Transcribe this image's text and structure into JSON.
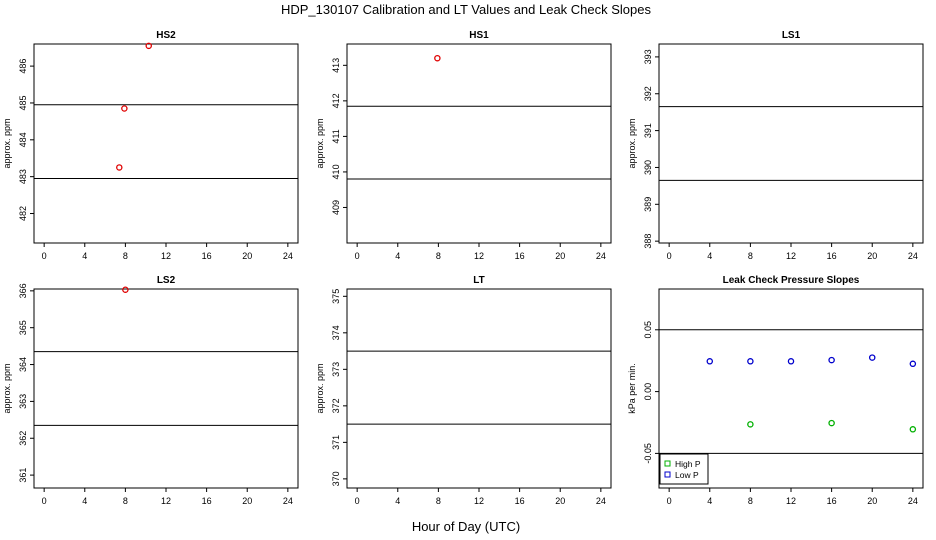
{
  "figure": {
    "title": "HDP_130107  Calibration and LT Values and Leak Check Slopes",
    "xlabel": "Hour of Day (UTC)"
  },
  "chart_data": [
    {
      "type": "scatter",
      "title": "HS2",
      "ylabel": "approx. ppm",
      "xlim": [
        -1,
        25
      ],
      "ylim": [
        481.2,
        486.6
      ],
      "xticks": [
        0,
        4,
        8,
        12,
        16,
        20,
        24
      ],
      "yticks": [
        482,
        483,
        484,
        485,
        486
      ],
      "hlines": [
        484.95,
        482.95
      ],
      "series": [
        {
          "marker": "circle",
          "color": "#e00000",
          "points": [
            {
              "x": 7.4,
              "y": 483.25
            },
            {
              "x": 7.9,
              "y": 484.85
            },
            {
              "x": 10.3,
              "y": 486.55
            }
          ]
        }
      ]
    },
    {
      "type": "scatter",
      "title": "HS1",
      "ylabel": "approx. ppm",
      "xlim": [
        -1,
        25
      ],
      "ylim": [
        408.0,
        413.6
      ],
      "xticks": [
        0,
        4,
        8,
        12,
        16,
        20,
        24
      ],
      "yticks": [
        409,
        410,
        411,
        412,
        413
      ],
      "hlines": [
        411.85,
        409.8
      ],
      "series": [
        {
          "marker": "circle",
          "color": "#e00000",
          "points": [
            {
              "x": 7.9,
              "y": 413.2
            }
          ]
        }
      ]
    },
    {
      "type": "scatter",
      "title": "LS1",
      "ylabel": "approx. ppm",
      "xlim": [
        -1,
        25
      ],
      "ylim": [
        387.95,
        393.35
      ],
      "xticks": [
        0,
        4,
        8,
        12,
        16,
        20,
        24
      ],
      "yticks": [
        388,
        389,
        390,
        391,
        392,
        393
      ],
      "hlines": [
        391.65,
        389.65
      ],
      "series": []
    },
    {
      "type": "scatter",
      "title": "LS2",
      "ylabel": "approx. ppm",
      "xlim": [
        -1,
        25
      ],
      "ylim": [
        360.65,
        366.05
      ],
      "xticks": [
        0,
        4,
        8,
        12,
        16,
        20,
        24
      ],
      "yticks": [
        361,
        362,
        363,
        364,
        365,
        366
      ],
      "hlines": [
        364.35,
        362.35
      ],
      "series": [
        {
          "marker": "circle",
          "color": "#e00000",
          "points": [
            {
              "x": 8.0,
              "y": 366.03
            }
          ]
        }
      ]
    },
    {
      "type": "scatter",
      "title": "LT",
      "ylabel": "approx. ppm",
      "xlim": [
        -1,
        25
      ],
      "ylim": [
        369.75,
        375.2
      ],
      "xticks": [
        0,
        4,
        8,
        12,
        16,
        20,
        24
      ],
      "yticks": [
        370,
        371,
        372,
        373,
        374,
        375
      ],
      "hlines": [
        373.5,
        371.5
      ],
      "series": []
    },
    {
      "type": "scatter",
      "title": "Leak Check Pressure Slopes",
      "ylabel": "kPa per min.",
      "xlim": [
        -1,
        25
      ],
      "ylim": [
        -0.078,
        0.083
      ],
      "xticks": [
        0,
        4,
        8,
        12,
        16,
        20,
        24
      ],
      "yticks": [
        -0.05,
        0.0,
        0.05
      ],
      "ytick_labels": [
        "-0.05",
        "0.00",
        "0.05"
      ],
      "hlines": [
        0.05,
        -0.05
      ],
      "legend": {
        "position": "bottom-left",
        "entries": [
          {
            "label": "High P",
            "color": "#00b000"
          },
          {
            "label": "Low P",
            "color": "#0000cc"
          }
        ]
      },
      "series": [
        {
          "name": "High P",
          "marker": "circle",
          "color": "#00b000",
          "points": [
            {
              "x": 8,
              "y": -0.0265
            },
            {
              "x": 16,
              "y": -0.0255
            },
            {
              "x": 24,
              "y": -0.0305
            }
          ]
        },
        {
          "name": "Low P",
          "marker": "circle",
          "color": "#0000cc",
          "points": [
            {
              "x": 4,
              "y": 0.0245
            },
            {
              "x": 8,
              "y": 0.0245
            },
            {
              "x": 12,
              "y": 0.0245
            },
            {
              "x": 16,
              "y": 0.0255
            },
            {
              "x": 20,
              "y": 0.0275
            },
            {
              "x": 24,
              "y": 0.0225
            }
          ]
        }
      ]
    }
  ]
}
